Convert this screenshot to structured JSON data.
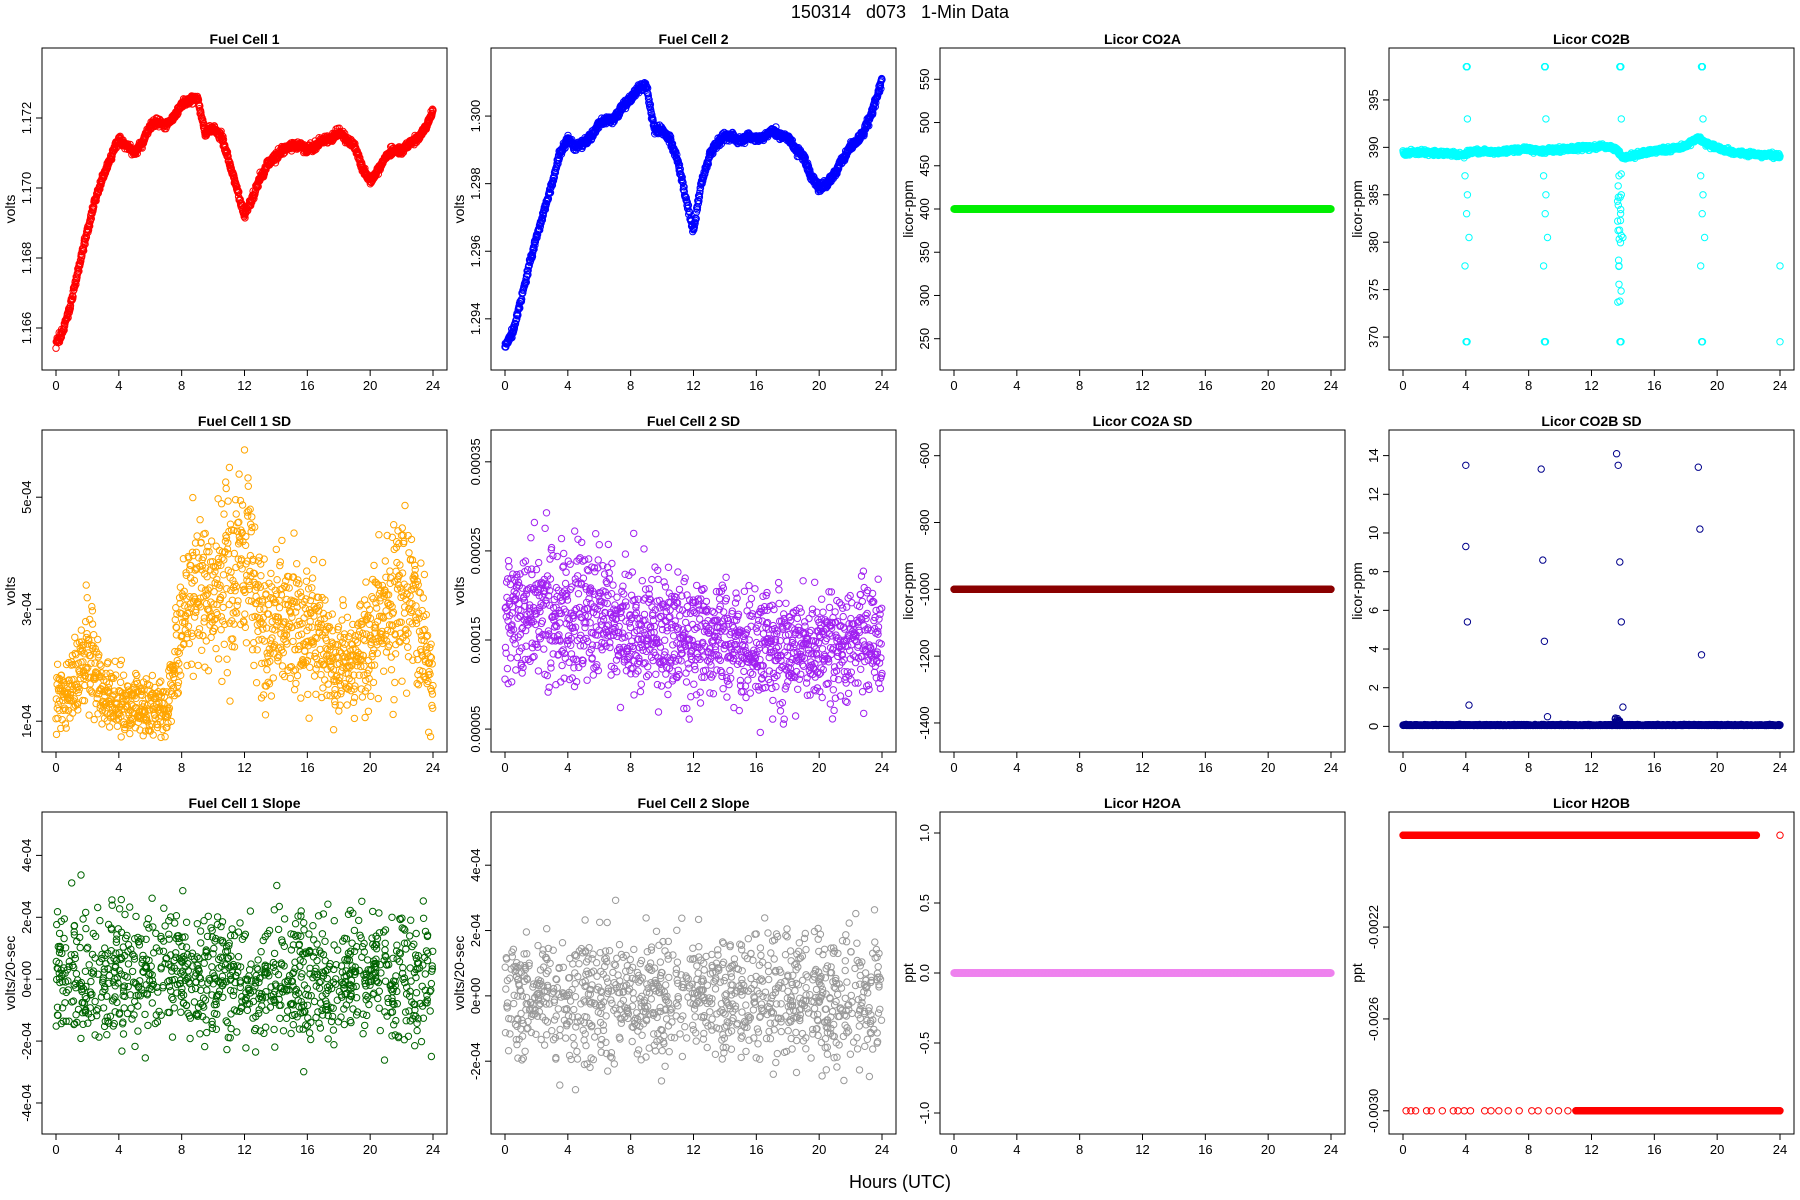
{
  "figure": {
    "title": "150314   d073   1-Min Data",
    "xlabel": "Hours (UTC)"
  },
  "chart_data": [
    {
      "type": "scatter",
      "title": "Fuel Cell 1",
      "ylabel": "volts",
      "color": "#ff0000",
      "xlim": [
        0,
        24
      ],
      "ylim": [
        1.1652,
        1.1736
      ],
      "xticks": [
        0,
        4,
        8,
        12,
        16,
        20,
        24
      ],
      "yticks": [
        1.166,
        1.168,
        1.17,
        1.172
      ],
      "ytick_labels": [
        "1.166",
        "1.168",
        "1.170",
        "1.172"
      ],
      "series": [
        {
          "x": [
            0.0,
            0.5,
            1.0,
            1.5,
            2.0,
            2.5,
            3.0,
            3.5,
            4.0,
            4.5,
            5.0,
            5.5,
            6.0,
            6.5,
            7.0,
            7.5,
            8.0,
            8.5,
            9.0,
            9.5,
            10.0,
            10.5,
            11.0,
            11.5,
            12.0,
            12.5,
            13.0,
            13.5,
            14.0,
            14.5,
            15.0,
            15.5,
            16.0,
            16.5,
            17.0,
            17.5,
            18.0,
            18.5,
            19.0,
            19.5,
            20.0,
            20.5,
            21.0,
            21.5,
            22.0,
            22.5,
            23.0,
            23.5,
            24.0
          ],
          "y": [
            1.1655,
            1.166,
            1.1668,
            1.1678,
            1.1688,
            1.1697,
            1.1703,
            1.1709,
            1.1714,
            1.1712,
            1.171,
            1.1713,
            1.1718,
            1.1719,
            1.1718,
            1.172,
            1.1724,
            1.1725,
            1.1726,
            1.1716,
            1.1717,
            1.1715,
            1.1708,
            1.17,
            1.1692,
            1.1697,
            1.1703,
            1.1707,
            1.1709,
            1.1711,
            1.1712,
            1.1712,
            1.1711,
            1.1712,
            1.1714,
            1.1714,
            1.1716,
            1.1714,
            1.1712,
            1.1706,
            1.1702,
            1.1705,
            1.1709,
            1.1711,
            1.1711,
            1.1713,
            1.1714,
            1.1717,
            1.1722
          ]
        }
      ]
    },
    {
      "type": "scatter",
      "title": "Fuel Cell 2",
      "ylabel": "volts",
      "color": "#0000ff",
      "xlim": [
        0,
        24
      ],
      "ylim": [
        1.2929,
        1.3016
      ],
      "xticks": [
        0,
        4,
        8,
        12,
        16,
        20,
        24
      ],
      "yticks": [
        1.294,
        1.296,
        1.298,
        1.3
      ],
      "ytick_labels": [
        "1.294",
        "1.296",
        "1.298",
        "1.300"
      ],
      "series": [
        {
          "x": [
            0.0,
            0.5,
            1.0,
            1.5,
            2.0,
            2.5,
            3.0,
            3.5,
            4.0,
            4.5,
            5.0,
            5.5,
            6.0,
            6.5,
            7.0,
            7.5,
            8.0,
            8.5,
            9.0,
            9.5,
            10.0,
            10.5,
            11.0,
            11.5,
            12.0,
            12.5,
            13.0,
            13.5,
            14.0,
            14.5,
            15.0,
            15.5,
            16.0,
            16.5,
            17.0,
            17.5,
            18.0,
            18.5,
            19.0,
            19.5,
            20.0,
            20.5,
            21.0,
            21.5,
            22.0,
            22.5,
            23.0,
            23.5,
            24.0
          ],
          "y": [
            1.2932,
            1.2936,
            1.2945,
            1.2955,
            1.2964,
            1.2972,
            1.298,
            1.2989,
            1.2993,
            1.2991,
            1.2992,
            1.2994,
            1.2998,
            1.2999,
            1.2999,
            1.3003,
            1.3005,
            1.3008,
            1.3009,
            1.2996,
            1.2996,
            1.2993,
            1.2987,
            1.2976,
            1.2966,
            1.298,
            1.2988,
            1.2992,
            1.2994,
            1.2994,
            1.2993,
            1.2994,
            1.2993,
            1.2994,
            1.2996,
            1.2994,
            1.2994,
            1.299,
            1.2988,
            1.2982,
            1.2979,
            1.298,
            1.2983,
            1.2987,
            1.2991,
            1.2993,
            1.2997,
            1.3003,
            1.3011
          ]
        }
      ]
    },
    {
      "type": "scatter",
      "title": "Licor CO2A",
      "ylabel": "licor-ppm",
      "color": "#00ee00",
      "xlim": [
        0,
        24
      ],
      "ylim": [
        230,
        570
      ],
      "xticks": [
        0,
        4,
        8,
        12,
        16,
        20,
        24
      ],
      "yticks": [
        250,
        300,
        350,
        400,
        450,
        500,
        550
      ],
      "ytick_labels": [
        "250",
        "300",
        "350",
        "400",
        "450",
        "500",
        "550"
      ],
      "series": [
        {
          "x": [
            0,
            24
          ],
          "y": [
            400,
            400
          ]
        }
      ]
    },
    {
      "type": "scatter",
      "title": "Licor CO2B",
      "ylabel": "licor-ppm",
      "color": "#00ffff",
      "xlim": [
        0,
        24
      ],
      "ylim": [
        368,
        399
      ],
      "xticks": [
        0,
        4,
        8,
        12,
        16,
        20,
        24
      ],
      "yticks": [
        370,
        375,
        380,
        385,
        390,
        395
      ],
      "ytick_labels": [
        "370",
        "375",
        "380",
        "385",
        "390",
        "395"
      ],
      "series": [
        {
          "x": [
            0.0,
            1.0,
            2.0,
            3.0,
            3.9,
            4.3,
            5.0,
            6.0,
            7.0,
            8.0,
            8.8,
            9.3,
            10.0,
            11.0,
            12.0,
            13.0,
            13.6,
            14.0,
            15.0,
            16.0,
            17.0,
            18.0,
            18.8,
            19.3,
            20.0,
            21.0,
            22.0,
            23.0,
            24.0
          ],
          "y": [
            389.4,
            389.5,
            389.4,
            389.3,
            389.2,
            389.5,
            389.6,
            389.5,
            389.7,
            389.8,
            389.6,
            389.7,
            389.8,
            389.9,
            390.0,
            390.1,
            389.8,
            388.9,
            389.3,
            389.6,
            389.8,
            390.2,
            391.0,
            390.4,
            389.9,
            389.5,
            389.3,
            389.2,
            389.1
          ]
        }
      ]
    },
    {
      "type": "scatter",
      "title": "Fuel Cell 1 SD",
      "ylabel": "volts",
      "color": "#ffa500",
      "xlim": [
        0,
        24
      ],
      "ylim": [
        7e-05,
        0.000595
      ],
      "xticks": [
        0,
        4,
        8,
        12,
        16,
        20,
        24
      ],
      "yticks": [
        0.0001,
        0.0003,
        0.0005
      ],
      "ytick_labels": [
        "1e-04",
        "3e-04",
        "5e-04"
      ],
      "series": [
        {
          "x": [
            0.0,
            1.0,
            2.0,
            3.0,
            4.0,
            5.0,
            6.0,
            7.0,
            8.0,
            9.0,
            10.0,
            11.0,
            12.0,
            13.0,
            14.0,
            15.0,
            16.0,
            17.0,
            18.0,
            19.0,
            20.0,
            21.0,
            22.0,
            23.0,
            24.0
          ],
          "y": [
            0.00014,
            0.00016,
            0.00022,
            0.00015,
            0.00013,
            0.00013,
            0.00012,
            0.00012,
            0.00027,
            0.00033,
            0.00032,
            0.00035,
            0.00041,
            0.00026,
            0.00027,
            0.00028,
            0.00026,
            0.00023,
            0.0002,
            0.00021,
            0.00026,
            0.0003,
            0.00032,
            0.00032,
            0.00015
          ]
        }
      ]
    },
    {
      "type": "scatter",
      "title": "Fuel Cell 2 SD",
      "ylabel": "volts",
      "color": "#a020f0",
      "xlim": [
        0,
        24
      ],
      "ylim": [
        4e-05,
        0.00037
      ],
      "xticks": [
        0,
        4,
        8,
        12,
        16,
        20,
        24
      ],
      "yticks": [
        5e-05,
        0.00015,
        0.00025,
        0.00035
      ],
      "ytick_labels": [
        "0.00005",
        "0.00015",
        "0.00025",
        "0.00035"
      ],
      "series": [
        {
          "x": [
            0.0,
            2.0,
            4.0,
            6.0,
            8.0,
            10.0,
            12.0,
            14.0,
            16.0,
            18.0,
            20.0,
            22.0,
            24.0
          ],
          "y": [
            0.00017,
            0.00018,
            0.00018,
            0.00017,
            0.00016,
            0.00016,
            0.00015,
            0.00015,
            0.00014,
            0.00014,
            0.00014,
            0.00015,
            0.00015
          ]
        }
      ]
    },
    {
      "type": "scatter",
      "title": "Licor CO2A SD",
      "ylabel": "licor-ppm",
      "color": "#8b0000",
      "xlim": [
        0,
        24
      ],
      "ylim": [
        -1445,
        -565
      ],
      "xticks": [
        0,
        4,
        8,
        12,
        16,
        20,
        24
      ],
      "yticks": [
        -1400,
        -1200,
        -1000,
        -800,
        -600
      ],
      "ytick_labels": [
        "-1400",
        "-1200",
        "-1000",
        "-800",
        "-600"
      ],
      "series": [
        {
          "x": [
            0,
            24
          ],
          "y": [
            -1000,
            -1000
          ]
        }
      ]
    },
    {
      "type": "scatter",
      "title": "Licor CO2B SD",
      "ylabel": "licor-ppm",
      "color": "#00008b",
      "xlim": [
        0,
        24
      ],
      "ylim": [
        -0.6,
        14.6
      ],
      "xticks": [
        0,
        4,
        8,
        12,
        16,
        20,
        24
      ],
      "yticks": [
        0,
        2,
        4,
        6,
        8,
        10,
        12,
        14
      ],
      "ytick_labels": [
        "0",
        "2",
        "4",
        "6",
        "8",
        "10",
        "12",
        "14"
      ],
      "series": [
        {
          "x": [
            4.0,
            4.0,
            4.1,
            4.2,
            8.8,
            8.9,
            9.0,
            9.2,
            13.6,
            13.7,
            13.8,
            13.9,
            14.0,
            18.8,
            18.9,
            19.0
          ],
          "y": [
            13.5,
            9.3,
            5.4,
            1.1,
            13.3,
            8.6,
            4.4,
            0.5,
            14.1,
            13.5,
            8.5,
            5.4,
            1.0,
            13.4,
            10.2,
            3.7
          ]
        }
      ]
    },
    {
      "type": "scatter",
      "title": "Fuel Cell 1 Slope",
      "ylabel": "volts/20-sec",
      "color": "#006400",
      "xlim": [
        0,
        24
      ],
      "ylim": [
        -0.000455,
        0.000495
      ],
      "xticks": [
        0,
        4,
        8,
        12,
        16,
        20,
        24
      ],
      "yticks": [
        -0.0004,
        -0.0002,
        0,
        0.0002,
        0.0004
      ],
      "ytick_labels": [
        "-4e-04",
        "-2e-04",
        "0e+00",
        "2e-04",
        "4e-04"
      ],
      "series": [
        {
          "x": [
            0,
            24
          ],
          "y": [
            0,
            0
          ]
        }
      ]
    },
    {
      "type": "scatter",
      "title": "Fuel Cell 2 Slope",
      "ylabel": "volts/20-sec",
      "color": "#999999",
      "xlim": [
        0,
        24
      ],
      "ylim": [
        -0.00038,
        0.00052
      ],
      "xticks": [
        0,
        4,
        8,
        12,
        16,
        20,
        24
      ],
      "yticks": [
        -0.0002,
        0,
        0.0002,
        0.0004
      ],
      "ytick_labels": [
        "-2e-04",
        "0e+00",
        "2e-04",
        "4e-04"
      ],
      "series": [
        {
          "x": [
            0,
            24
          ],
          "y": [
            0,
            0
          ]
        }
      ]
    },
    {
      "type": "scatter",
      "title": "Licor H2OA",
      "ylabel": "ppt",
      "color": "#ee82ee",
      "xlim": [
        0,
        24
      ],
      "ylim": [
        -1.05,
        1.05
      ],
      "xticks": [
        0,
        4,
        8,
        12,
        16,
        20,
        24
      ],
      "yticks": [
        -1.0,
        -0.5,
        0.0,
        0.5,
        1.0
      ],
      "ytick_labels": [
        "-1.0",
        "-0.5",
        "0.0",
        "0.5",
        "1.0"
      ],
      "series": [
        {
          "x": [
            0,
            24
          ],
          "y": [
            0,
            0
          ]
        }
      ]
    },
    {
      "type": "scatter",
      "title": "Licor H2OB",
      "ylabel": "ppt",
      "color": "#ff0000",
      "xlim": [
        0,
        24
      ],
      "ylim": [
        -0.00304,
        -0.00176
      ],
      "xticks": [
        0,
        4,
        8,
        12,
        16,
        20,
        24
      ],
      "yticks": [
        -0.003,
        -0.0026,
        -0.0022
      ],
      "ytick_labels": [
        "-0.0030",
        "-0.0026",
        "-0.0022"
      ],
      "series": [
        {
          "x": [
            0,
            24
          ],
          "y": [
            -0.0018,
            -0.0018
          ]
        },
        {
          "x": [
            0,
            24
          ],
          "y": [
            -0.003,
            -0.003
          ]
        }
      ]
    }
  ]
}
